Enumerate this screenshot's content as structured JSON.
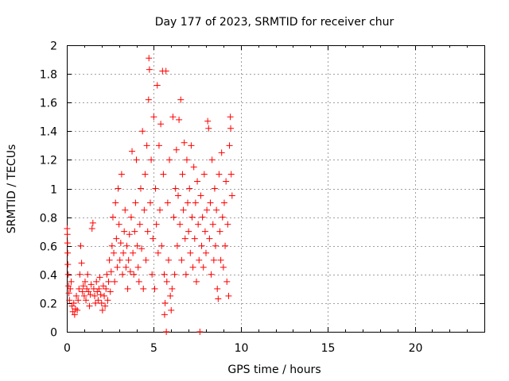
{
  "chart_data": {
    "type": "scatter",
    "title": "Day 177 of 2023, SRMTID for receiver chur",
    "xlabel": "GPS time / hours",
    "ylabel": "SRMTID / TECUs",
    "xlim": [
      0,
      24
    ],
    "ylim": [
      0,
      2
    ],
    "xticks": [
      0,
      5,
      10,
      15,
      20
    ],
    "xtick_labels": [
      "0",
      "5",
      "10",
      "15",
      "20"
    ],
    "yticks": [
      0,
      0.2,
      0.4,
      0.6,
      0.8,
      1,
      1.2,
      1.4,
      1.6,
      1.8,
      2
    ],
    "ytick_labels": [
      "0",
      "0.2",
      "0.4",
      "0.6",
      "0.8",
      "1",
      "1.2",
      "1.4",
      "1.6",
      "1.8",
      "2"
    ],
    "grid": true,
    "marker": "+",
    "series": [
      {
        "name": "SRMTID",
        "color": "#ff0000",
        "points": [
          [
            0.02,
            0.72
          ],
          [
            0.03,
            0.68
          ],
          [
            0.04,
            0.62
          ],
          [
            0.05,
            0.55
          ],
          [
            0.06,
            0.47
          ],
          [
            0.08,
            0.4
          ],
          [
            0.1,
            0.32
          ],
          [
            0.12,
            0.27
          ],
          [
            0.15,
            0.22
          ],
          [
            0.2,
            0.3
          ],
          [
            0.25,
            0.35
          ],
          [
            0.3,
            0.18
          ],
          [
            0.35,
            0.14
          ],
          [
            0.4,
            0.2
          ],
          [
            0.45,
            0.12
          ],
          [
            0.5,
            0.16
          ],
          [
            0.55,
            0.25
          ],
          [
            0.6,
            0.15
          ],
          [
            0.65,
            0.22
          ],
          [
            0.7,
            0.3
          ],
          [
            0.75,
            0.4
          ],
          [
            0.8,
            0.6
          ],
          [
            0.85,
            0.48
          ],
          [
            0.9,
            0.28
          ],
          [
            0.95,
            0.32
          ],
          [
            1.0,
            0.25
          ],
          [
            1.05,
            0.35
          ],
          [
            1.1,
            0.22
          ],
          [
            1.15,
            0.3
          ],
          [
            1.2,
            0.4
          ],
          [
            1.25,
            0.28
          ],
          [
            1.3,
            0.18
          ],
          [
            1.35,
            0.26
          ],
          [
            1.4,
            0.33
          ],
          [
            1.45,
            0.72
          ],
          [
            1.5,
            0.76
          ],
          [
            1.55,
            0.3
          ],
          [
            1.6,
            0.25
          ],
          [
            1.65,
            0.2
          ],
          [
            1.7,
            0.35
          ],
          [
            1.75,
            0.28
          ],
          [
            1.8,
            0.22
          ],
          [
            1.85,
            0.3
          ],
          [
            1.9,
            0.38
          ],
          [
            1.95,
            0.26
          ],
          [
            2.0,
            0.2
          ],
          [
            2.05,
            0.15
          ],
          [
            2.1,
            0.32
          ],
          [
            2.15,
            0.25
          ],
          [
            2.2,
            0.18
          ],
          [
            2.25,
            0.3
          ],
          [
            2.3,
            0.4
          ],
          [
            2.35,
            0.22
          ],
          [
            2.4,
            0.35
          ],
          [
            2.45,
            0.5
          ],
          [
            2.5,
            0.28
          ],
          [
            2.55,
            0.42
          ],
          [
            2.6,
            0.6
          ],
          [
            2.65,
            0.8
          ],
          [
            2.7,
            0.55
          ],
          [
            2.75,
            0.35
          ],
          [
            2.8,
            0.9
          ],
          [
            2.85,
            0.65
          ],
          [
            2.9,
            0.45
          ],
          [
            2.95,
            1.0
          ],
          [
            3.0,
            0.75
          ],
          [
            3.05,
            0.5
          ],
          [
            3.1,
            0.62
          ],
          [
            3.15,
            1.1
          ],
          [
            3.2,
            0.4
          ],
          [
            3.25,
            0.55
          ],
          [
            3.3,
            0.7
          ],
          [
            3.35,
            0.85
          ],
          [
            3.4,
            0.45
          ],
          [
            3.45,
            0.6
          ],
          [
            3.5,
            0.3
          ],
          [
            3.55,
            0.5
          ],
          [
            3.6,
            0.68
          ],
          [
            3.65,
            0.42
          ],
          [
            3.7,
            0.8
          ],
          [
            3.75,
            1.26
          ],
          [
            3.8,
            0.55
          ],
          [
            3.85,
            0.4
          ],
          [
            3.9,
            0.7
          ],
          [
            3.95,
            0.9
          ],
          [
            4.0,
            1.2
          ],
          [
            4.05,
            0.6
          ],
          [
            4.1,
            0.45
          ],
          [
            4.15,
            0.35
          ],
          [
            4.2,
            0.75
          ],
          [
            4.25,
            1.0
          ],
          [
            4.3,
            0.58
          ],
          [
            4.35,
            1.4
          ],
          [
            4.4,
            0.3
          ],
          [
            4.45,
            0.85
          ],
          [
            4.5,
            1.1
          ],
          [
            4.55,
            0.5
          ],
          [
            4.6,
            1.3
          ],
          [
            4.65,
            0.7
          ],
          [
            4.7,
            1.62
          ],
          [
            4.72,
            1.91
          ],
          [
            4.75,
            1.83
          ],
          [
            4.8,
            0.9
          ],
          [
            4.85,
            1.2
          ],
          [
            4.9,
            0.4
          ],
          [
            4.95,
            0.65
          ],
          [
            5.0,
            1.5
          ],
          [
            5.05,
            0.3
          ],
          [
            5.1,
            1.0
          ],
          [
            5.15,
            0.75
          ],
          [
            5.2,
            1.72
          ],
          [
            5.25,
            0.55
          ],
          [
            5.3,
            1.3
          ],
          [
            5.35,
            0.85
          ],
          [
            5.4,
            1.45
          ],
          [
            5.45,
            0.6
          ],
          [
            5.5,
            1.82
          ],
          [
            5.55,
            1.1
          ],
          [
            5.6,
            0.4
          ],
          [
            5.62,
            0.12
          ],
          [
            5.65,
            0.2
          ],
          [
            5.7,
            1.82
          ],
          [
            5.72,
            0.0
          ],
          [
            5.75,
            0.35
          ],
          [
            5.8,
            0.9
          ],
          [
            5.85,
            0.5
          ],
          [
            5.9,
            1.2
          ],
          [
            5.95,
            0.25
          ],
          [
            6.0,
            0.15
          ],
          [
            6.05,
            0.3
          ],
          [
            6.1,
            1.5
          ],
          [
            6.15,
            0.8
          ],
          [
            6.2,
            0.4
          ],
          [
            6.25,
            1.0
          ],
          [
            6.3,
            1.27
          ],
          [
            6.35,
            0.6
          ],
          [
            6.4,
            0.95
          ],
          [
            6.45,
            1.48
          ],
          [
            6.5,
            0.75
          ],
          [
            6.55,
            1.62
          ],
          [
            6.6,
            0.5
          ],
          [
            6.65,
            1.1
          ],
          [
            6.7,
            0.85
          ],
          [
            6.75,
            1.32
          ],
          [
            6.8,
            0.65
          ],
          [
            6.85,
            0.4
          ],
          [
            6.9,
            1.2
          ],
          [
            6.95,
            0.9
          ],
          [
            7.0,
            0.7
          ],
          [
            7.05,
            1.0
          ],
          [
            7.1,
            0.55
          ],
          [
            7.15,
            1.3
          ],
          [
            7.2,
            0.8
          ],
          [
            7.25,
            0.45
          ],
          [
            7.3,
            1.15
          ],
          [
            7.35,
            0.65
          ],
          [
            7.4,
            0.9
          ],
          [
            7.45,
            0.35
          ],
          [
            7.5,
            1.05
          ],
          [
            7.55,
            0.75
          ],
          [
            7.6,
            0.5
          ],
          [
            7.65,
            0.0
          ],
          [
            7.7,
            0.95
          ],
          [
            7.75,
            0.6
          ],
          [
            7.8,
            0.8
          ],
          [
            7.85,
            0.45
          ],
          [
            7.9,
            1.1
          ],
          [
            7.95,
            0.7
          ],
          [
            8.0,
            0.55
          ],
          [
            8.05,
            0.85
          ],
          [
            8.1,
            1.47
          ],
          [
            8.15,
            1.42
          ],
          [
            8.2,
            0.65
          ],
          [
            8.25,
            0.9
          ],
          [
            8.3,
            0.4
          ],
          [
            8.35,
            1.2
          ],
          [
            8.4,
            0.75
          ],
          [
            8.45,
            0.5
          ],
          [
            8.5,
            1.0
          ],
          [
            8.55,
            0.6
          ],
          [
            8.6,
            0.85
          ],
          [
            8.65,
            0.3
          ],
          [
            8.7,
            0.23
          ],
          [
            8.75,
            1.1
          ],
          [
            8.8,
            0.7
          ],
          [
            8.85,
            0.5
          ],
          [
            8.9,
            1.25
          ],
          [
            8.95,
            0.8
          ],
          [
            9.0,
            0.45
          ],
          [
            9.05,
            0.9
          ],
          [
            9.1,
            0.6
          ],
          [
            9.15,
            1.05
          ],
          [
            9.2,
            0.35
          ],
          [
            9.25,
            0.75
          ],
          [
            9.3,
            0.25
          ],
          [
            9.35,
            1.3
          ],
          [
            9.4,
            1.5
          ],
          [
            9.42,
            1.42
          ],
          [
            9.45,
            1.1
          ],
          [
            9.5,
            0.95
          ]
        ]
      }
    ]
  }
}
